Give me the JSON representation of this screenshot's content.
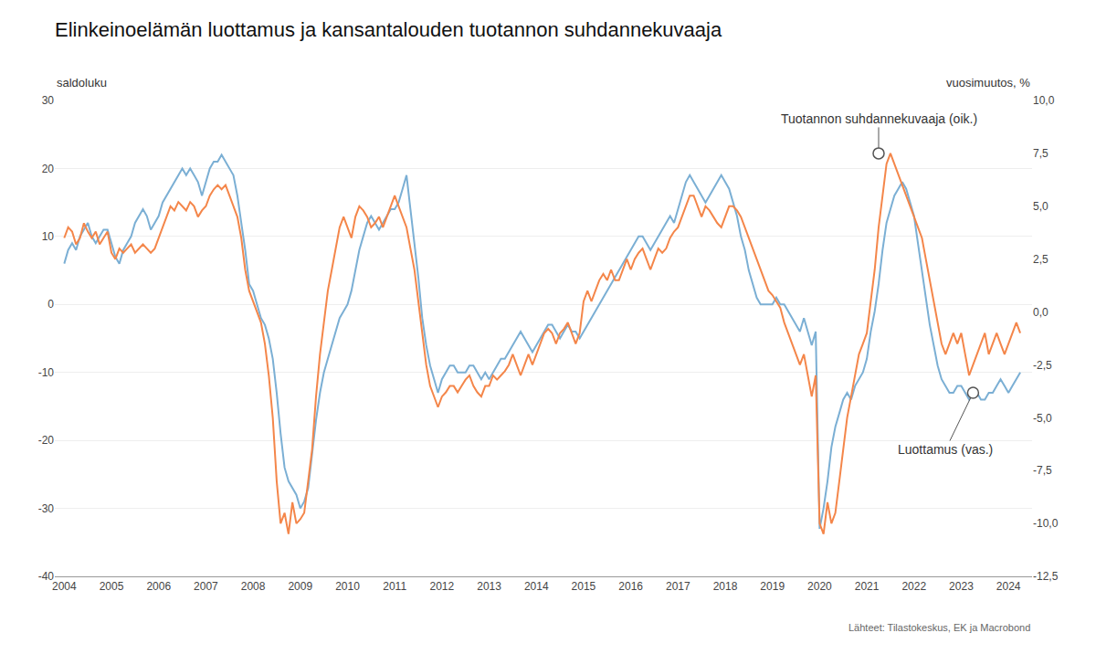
{
  "chart_data": {
    "type": "line",
    "title": "Elinkeinoelämän luottamus ja kansantalouden tuotannon suhdannekuvaaja",
    "ylabel": "saldoluku",
    "y2label": "vuosimuutos, %",
    "source": "Lähteet: Tilastokeskus, EK ja Macrobond",
    "grid": true,
    "xlim": [
      2003.8,
      2024.5
    ],
    "xticks": [
      2004,
      2005,
      2006,
      2007,
      2008,
      2009,
      2010,
      2011,
      2012,
      2013,
      2014,
      2015,
      2016,
      2017,
      2018,
      2019,
      2020,
      2021,
      2022,
      2023,
      2024
    ],
    "ylim": [
      -40,
      30
    ],
    "yticks": [
      -40,
      -30,
      -20,
      -10,
      0,
      10,
      20,
      30
    ],
    "y2lim": [
      -12.5,
      10.0
    ],
    "y2ticks": [
      {
        "value": -12.5,
        "label": "-12,5"
      },
      {
        "value": -10.0,
        "label": "-10,0"
      },
      {
        "value": -7.5,
        "label": "-7,5"
      },
      {
        "value": -5.0,
        "label": "-5,0"
      },
      {
        "value": -2.5,
        "label": "-2,5"
      },
      {
        "value": 0.0,
        "label": "0,0"
      },
      {
        "value": 2.5,
        "label": "2,5"
      },
      {
        "value": 5.0,
        "label": "5,0"
      },
      {
        "value": 7.5,
        "label": "7,5"
      },
      {
        "value": 10.0,
        "label": "10,0"
      }
    ],
    "x": [
      2004.0,
      2004.083,
      2004.167,
      2004.25,
      2004.333,
      2004.417,
      2004.5,
      2004.583,
      2004.667,
      2004.75,
      2004.833,
      2004.917,
      2005.0,
      2005.083,
      2005.167,
      2005.25,
      2005.333,
      2005.417,
      2005.5,
      2005.583,
      2005.667,
      2005.75,
      2005.833,
      2005.917,
      2006.0,
      2006.083,
      2006.167,
      2006.25,
      2006.333,
      2006.417,
      2006.5,
      2006.583,
      2006.667,
      2006.75,
      2006.833,
      2006.917,
      2007.0,
      2007.083,
      2007.167,
      2007.25,
      2007.333,
      2007.417,
      2007.5,
      2007.583,
      2007.667,
      2007.75,
      2007.833,
      2007.917,
      2008.0,
      2008.083,
      2008.167,
      2008.25,
      2008.333,
      2008.417,
      2008.5,
      2008.583,
      2008.667,
      2008.75,
      2008.833,
      2008.917,
      2009.0,
      2009.083,
      2009.167,
      2009.25,
      2009.333,
      2009.417,
      2009.5,
      2009.583,
      2009.667,
      2009.75,
      2009.833,
      2009.917,
      2010.0,
      2010.083,
      2010.167,
      2010.25,
      2010.333,
      2010.417,
      2010.5,
      2010.583,
      2010.667,
      2010.75,
      2010.833,
      2010.917,
      2011.0,
      2011.083,
      2011.167,
      2011.25,
      2011.333,
      2011.417,
      2011.5,
      2011.583,
      2011.667,
      2011.75,
      2011.833,
      2011.917,
      2012.0,
      2012.083,
      2012.167,
      2012.25,
      2012.333,
      2012.417,
      2012.5,
      2012.583,
      2012.667,
      2012.75,
      2012.833,
      2012.917,
      2013.0,
      2013.083,
      2013.167,
      2013.25,
      2013.333,
      2013.417,
      2013.5,
      2013.583,
      2013.667,
      2013.75,
      2013.833,
      2013.917,
      2014.0,
      2014.083,
      2014.167,
      2014.25,
      2014.333,
      2014.417,
      2014.5,
      2014.583,
      2014.667,
      2014.75,
      2014.833,
      2014.917,
      2015.0,
      2015.083,
      2015.167,
      2015.25,
      2015.333,
      2015.417,
      2015.5,
      2015.583,
      2015.667,
      2015.75,
      2015.833,
      2015.917,
      2016.0,
      2016.083,
      2016.167,
      2016.25,
      2016.333,
      2016.417,
      2016.5,
      2016.583,
      2016.667,
      2016.75,
      2016.833,
      2016.917,
      2017.0,
      2017.083,
      2017.167,
      2017.25,
      2017.333,
      2017.417,
      2017.5,
      2017.583,
      2017.667,
      2017.75,
      2017.833,
      2017.917,
      2018.0,
      2018.083,
      2018.167,
      2018.25,
      2018.333,
      2018.417,
      2018.5,
      2018.583,
      2018.667,
      2018.75,
      2018.833,
      2018.917,
      2019.0,
      2019.083,
      2019.167,
      2019.25,
      2019.333,
      2019.417,
      2019.5,
      2019.583,
      2019.667,
      2019.75,
      2019.833,
      2019.917,
      2020.0,
      2020.083,
      2020.167,
      2020.25,
      2020.333,
      2020.417,
      2020.5,
      2020.583,
      2020.667,
      2020.75,
      2020.833,
      2020.917,
      2021.0,
      2021.083,
      2021.167,
      2021.25,
      2021.333,
      2021.417,
      2021.5,
      2021.583,
      2021.667,
      2021.75,
      2021.833,
      2021.917,
      2022.0,
      2022.083,
      2022.167,
      2022.25,
      2022.333,
      2022.417,
      2022.5,
      2022.583,
      2022.667,
      2022.75,
      2022.833,
      2022.917,
      2023.0,
      2023.083,
      2023.167,
      2023.25,
      2023.333,
      2023.417,
      2023.5,
      2023.583,
      2023.667,
      2023.75,
      2023.833,
      2023.917,
      2024.0,
      2024.083,
      2024.167,
      2024.25
    ],
    "series": [
      {
        "name": "Luottamus (vas.)",
        "color": "#7BAFD4",
        "axis": "y",
        "annotation": {
          "x": 2023.25,
          "y": -13.0
        },
        "values": [
          6,
          8,
          9,
          8,
          10,
          11,
          12,
          10,
          9,
          10,
          11,
          11,
          9,
          7,
          6,
          8,
          9,
          10,
          12,
          13,
          14,
          13,
          11,
          12,
          13,
          15,
          16,
          17,
          18,
          19,
          20,
          19,
          20,
          19,
          18,
          16,
          18,
          20,
          21,
          21,
          22,
          21,
          20,
          19,
          16,
          12,
          8,
          3,
          2,
          0,
          -2,
          -3,
          -5,
          -8,
          -13,
          -19,
          -24,
          -26,
          -27,
          -28,
          -30,
          -29,
          -27,
          -22,
          -17,
          -13,
          -10,
          -8,
          -6,
          -4,
          -2,
          -1,
          0,
          2,
          5,
          8,
          10,
          12,
          13,
          12,
          11,
          12,
          13,
          14,
          14,
          15,
          17,
          19,
          14,
          9,
          4,
          -2,
          -6,
          -9,
          -11,
          -13,
          -11,
          -10,
          -9,
          -9,
          -10,
          -10,
          -10,
          -9,
          -9,
          -10,
          -11,
          -10,
          -11,
          -10,
          -9,
          -8,
          -8,
          -7,
          -6,
          -5,
          -4,
          -5,
          -6,
          -7,
          -6,
          -5,
          -4,
          -3,
          -3,
          -4,
          -5,
          -4,
          -3,
          -4,
          -4,
          -5,
          -4,
          -3,
          -2,
          -1,
          0,
          1,
          2,
          3,
          4,
          5,
          6,
          7,
          8,
          9,
          10,
          10,
          9,
          8,
          9,
          10,
          11,
          12,
          13,
          12,
          14,
          16,
          18,
          19,
          18,
          17,
          16,
          15,
          16,
          17,
          18,
          19,
          18,
          17,
          15,
          13,
          10,
          8,
          5,
          3,
          1,
          0,
          0,
          0,
          0,
          1,
          0,
          0,
          -1,
          -2,
          -3,
          -4,
          -2,
          -4,
          -6,
          -4,
          -33,
          -30,
          -26,
          -21,
          -18,
          -16,
          -14,
          -13,
          -14,
          -12,
          -11,
          -10,
          -8,
          -4,
          -1,
          3,
          8,
          12,
          14,
          16,
          17,
          18,
          17,
          15,
          13,
          9,
          5,
          1,
          -3,
          -6,
          -9,
          -11,
          -12,
          -13,
          -13,
          -12,
          -12,
          -13,
          -14,
          -13,
          -13,
          -14,
          -14,
          -13,
          -13,
          -12,
          -11,
          -12,
          -13,
          -12,
          -11,
          -10
        ]
      },
      {
        "name": "Tuotannon suhdannekuvaaja (oik.)",
        "color": "#F4864A",
        "axis": "y2",
        "annotation": {
          "x": 2021.25,
          "y": 7.5
        },
        "values": [
          3.5,
          4.0,
          3.8,
          3.2,
          3.5,
          4.2,
          3.8,
          3.5,
          3.8,
          3.2,
          3.5,
          3.8,
          2.8,
          2.5,
          3.0,
          2.8,
          3.0,
          3.2,
          2.8,
          3.0,
          3.2,
          3.0,
          2.8,
          3.0,
          3.5,
          4.0,
          4.5,
          5.0,
          4.8,
          5.2,
          5.0,
          4.8,
          5.2,
          5.0,
          4.5,
          4.8,
          5.0,
          5.5,
          5.8,
          6.0,
          5.8,
          6.0,
          5.5,
          5.0,
          4.5,
          3.5,
          2.0,
          1.0,
          0.5,
          0.0,
          -0.5,
          -1.5,
          -3.0,
          -5.0,
          -8.0,
          -10.0,
          -9.5,
          -10.5,
          -9.0,
          -10.0,
          -9.8,
          -9.5,
          -8.0,
          -6.5,
          -4.0,
          -2.0,
          -0.5,
          1.0,
          2.0,
          3.0,
          4.0,
          4.5,
          4.0,
          3.5,
          4.5,
          5.0,
          4.8,
          4.5,
          4.0,
          4.2,
          4.5,
          4.0,
          4.5,
          5.0,
          5.5,
          5.0,
          4.5,
          4.0,
          3.0,
          2.0,
          0.5,
          -1.0,
          -2.5,
          -3.5,
          -4.0,
          -4.5,
          -4.0,
          -3.8,
          -3.5,
          -3.5,
          -3.8,
          -3.5,
          -3.2,
          -3.0,
          -3.5,
          -3.8,
          -4.0,
          -3.5,
          -3.5,
          -3.0,
          -3.2,
          -3.0,
          -2.8,
          -2.5,
          -2.0,
          -2.5,
          -3.0,
          -2.5,
          -2.0,
          -2.5,
          -2.0,
          -1.5,
          -1.0,
          -0.8,
          -1.0,
          -1.5,
          -1.0,
          -0.8,
          -0.5,
          -1.0,
          -1.5,
          -1.0,
          0.5,
          1.0,
          0.5,
          1.0,
          1.5,
          1.8,
          1.5,
          2.0,
          1.5,
          1.5,
          2.0,
          2.5,
          2.0,
          2.5,
          2.8,
          3.0,
          2.5,
          2.0,
          2.5,
          3.0,
          2.8,
          3.0,
          3.5,
          3.8,
          4.0,
          4.5,
          5.0,
          5.5,
          5.5,
          5.0,
          4.5,
          5.0,
          4.8,
          4.5,
          4.2,
          4.0,
          4.5,
          5.0,
          5.0,
          4.8,
          4.5,
          4.0,
          3.5,
          3.0,
          2.5,
          2.0,
          1.5,
          1.0,
          0.8,
          0.5,
          0.2,
          -0.5,
          -1.0,
          -1.5,
          -2.0,
          -2.5,
          -2.0,
          -3.0,
          -4.0,
          -3.0,
          -10.0,
          -10.5,
          -9.0,
          -10.0,
          -9.5,
          -8.0,
          -6.5,
          -5.0,
          -4.0,
          -3.0,
          -2.0,
          -1.5,
          -1.0,
          0.5,
          2.0,
          4.0,
          5.5,
          7.0,
          7.5,
          7.0,
          6.5,
          6.0,
          5.5,
          5.0,
          4.5,
          4.0,
          3.5,
          2.5,
          1.5,
          0.5,
          -0.5,
          -1.5,
          -2.0,
          -1.5,
          -1.0,
          -1.5,
          -1.0,
          -2.0,
          -3.0,
          -2.5,
          -2.0,
          -1.5,
          -1.0,
          -2.0,
          -1.5,
          -1.0,
          -1.5,
          -2.0,
          -1.5,
          -1.0,
          -0.5,
          -1.0
        ]
      }
    ]
  }
}
